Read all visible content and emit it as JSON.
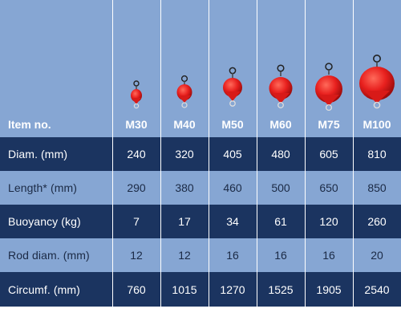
{
  "header": {
    "label": "Item no.",
    "models": [
      "M30",
      "M40",
      "M50",
      "M60",
      "M75",
      "M100"
    ]
  },
  "rows": [
    {
      "label": "Diam. (mm)",
      "values": [
        "240",
        "320",
        "405",
        "480",
        "605",
        "810"
      ]
    },
    {
      "label": "Length* (mm)",
      "values": [
        "290",
        "380",
        "460",
        "500",
        "650",
        "850"
      ]
    },
    {
      "label": "Buoyancy (kg)",
      "values": [
        "7",
        "17",
        "34",
        "61",
        "120",
        "260"
      ]
    },
    {
      "label": "Rod diam. (mm)",
      "values": [
        "12",
        "12",
        "16",
        "16",
        "16",
        "20"
      ]
    },
    {
      "label": "Circumf. (mm)",
      "values": [
        "760",
        "1015",
        "1270",
        "1525",
        "1905",
        "2540"
      ]
    }
  ],
  "colors": {
    "light_blue": "#86a6d3",
    "dark_navy": "#1b3460",
    "buoy_red": "#e8201e"
  },
  "icons": [
    "buoy-m30-icon",
    "buoy-m40-icon",
    "buoy-m50-icon",
    "buoy-m60-icon",
    "buoy-m75-icon",
    "buoy-m100-icon"
  ]
}
